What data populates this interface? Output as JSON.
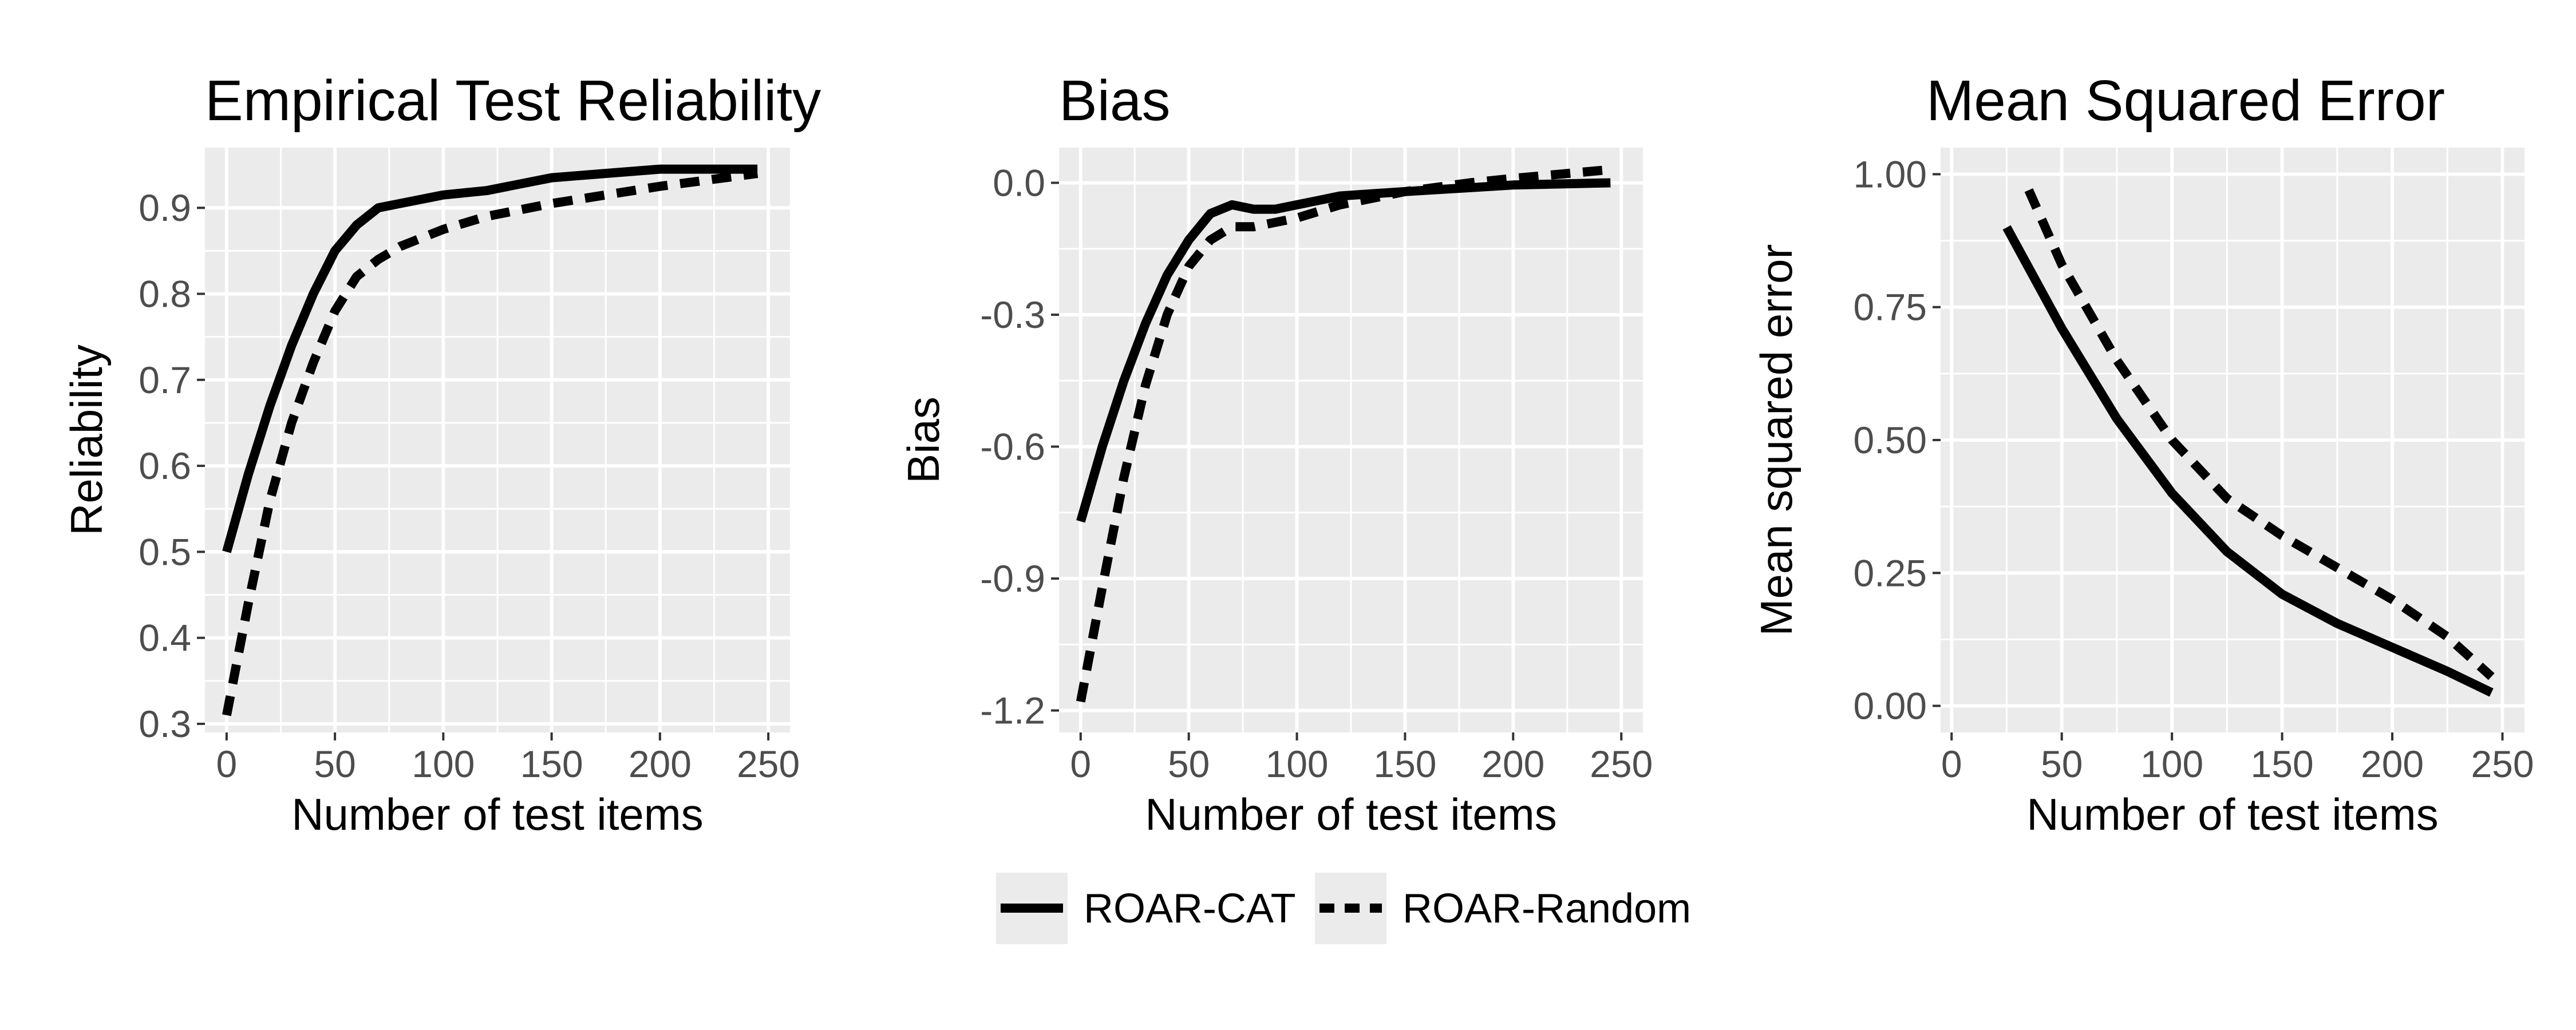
{
  "figure": {
    "background": "#ffffff",
    "panel_background": "#ebebeb",
    "grid_color": "#ffffff",
    "tick_label_color": "#4d4d4d",
    "line_color": "#000000"
  },
  "legend": {
    "placement": "bottom-center",
    "items": [
      {
        "label": "ROAR-CAT",
        "linetype": "solid"
      },
      {
        "label": "ROAR-Random",
        "linetype": "dashed"
      }
    ]
  },
  "chart_data": [
    {
      "type": "line",
      "title": "Empirical Test Reliability",
      "xlabel": "Number of test items",
      "ylabel": "Reliability",
      "xlim": [
        -10,
        260
      ],
      "ylim": [
        0.29,
        0.97
      ],
      "xticks": [
        0,
        50,
        100,
        150,
        200,
        250
      ],
      "xtick_labels": [
        "0",
        "50",
        "100",
        "150",
        "200",
        "250"
      ],
      "yticks": [
        0.3,
        0.4,
        0.5,
        0.6,
        0.7,
        0.8,
        0.9
      ],
      "ytick_labels": [
        "0.3",
        "0.4",
        "0.5",
        "0.6",
        "0.7",
        "0.8",
        "0.9"
      ],
      "grid": true,
      "series": [
        {
          "name": "ROAR-CAT",
          "linetype": "solid",
          "x": [
            0,
            10,
            20,
            30,
            40,
            50,
            60,
            70,
            80,
            90,
            100,
            120,
            150,
            200,
            245
          ],
          "y": [
            0.5,
            0.59,
            0.67,
            0.74,
            0.8,
            0.85,
            0.88,
            0.9,
            0.905,
            0.91,
            0.915,
            0.92,
            0.935,
            0.945,
            0.945
          ]
        },
        {
          "name": "ROAR-Random",
          "linetype": "dashed",
          "x": [
            0,
            10,
            20,
            30,
            40,
            50,
            60,
            70,
            80,
            100,
            120,
            150,
            200,
            245
          ],
          "y": [
            0.31,
            0.44,
            0.56,
            0.65,
            0.72,
            0.78,
            0.82,
            0.84,
            0.855,
            0.875,
            0.89,
            0.905,
            0.925,
            0.94
          ]
        }
      ]
    },
    {
      "type": "line",
      "title": "Bias",
      "xlabel": "Number of test items",
      "ylabel": "Bias",
      "xlim": [
        -10,
        260
      ],
      "ylim": [
        -1.25,
        0.08
      ],
      "xticks": [
        0,
        50,
        100,
        150,
        200,
        250
      ],
      "xtick_labels": [
        "0",
        "50",
        "100",
        "150",
        "200",
        "250"
      ],
      "yticks": [
        0.0,
        -0.3,
        -0.6,
        -0.9,
        -1.2
      ],
      "ytick_labels": [
        "0.0",
        "-0.3",
        "-0.6",
        "-0.9",
        "-1.2"
      ],
      "grid": true,
      "series": [
        {
          "name": "ROAR-CAT",
          "linetype": "solid",
          "x": [
            0,
            10,
            20,
            30,
            40,
            50,
            60,
            70,
            80,
            90,
            100,
            120,
            150,
            200,
            245
          ],
          "y": [
            -0.77,
            -0.6,
            -0.45,
            -0.32,
            -0.21,
            -0.13,
            -0.07,
            -0.05,
            -0.06,
            -0.06,
            -0.05,
            -0.03,
            -0.02,
            -0.005,
            0.0
          ]
        },
        {
          "name": "ROAR-Random",
          "linetype": "dashed",
          "x": [
            0,
            10,
            20,
            30,
            40,
            50,
            60,
            70,
            80,
            100,
            120,
            150,
            180,
            200,
            245
          ],
          "y": [
            -1.18,
            -0.92,
            -0.67,
            -0.46,
            -0.3,
            -0.19,
            -0.13,
            -0.1,
            -0.1,
            -0.08,
            -0.05,
            -0.02,
            0.0,
            0.01,
            0.03
          ]
        }
      ]
    },
    {
      "type": "line",
      "title": "Mean Squared Error",
      "xlabel": "Number of test items",
      "ylabel": "Mean squared error",
      "xlim": [
        -5,
        260
      ],
      "ylim": [
        -0.05,
        1.05
      ],
      "xticks": [
        0,
        50,
        100,
        150,
        200,
        250
      ],
      "xtick_labels": [
        "0",
        "50",
        "100",
        "150",
        "200",
        "250"
      ],
      "yticks": [
        0.0,
        0.25,
        0.5,
        0.75,
        1.0
      ],
      "ytick_labels": [
        "0.00",
        "0.25",
        "0.50",
        "0.75",
        "1.00"
      ],
      "grid": true,
      "series": [
        {
          "name": "ROAR-CAT",
          "linetype": "solid",
          "x": [
            25,
            50,
            75,
            100,
            125,
            150,
            175,
            200,
            225,
            245
          ],
          "y": [
            0.9,
            0.71,
            0.54,
            0.4,
            0.29,
            0.21,
            0.155,
            0.11,
            0.065,
            0.025
          ]
        },
        {
          "name": "ROAR-Random",
          "linetype": "dashed",
          "x": [
            35,
            50,
            75,
            100,
            125,
            150,
            175,
            200,
            225,
            245
          ],
          "y": [
            0.97,
            0.83,
            0.65,
            0.5,
            0.39,
            0.32,
            0.26,
            0.2,
            0.13,
            0.055
          ]
        }
      ]
    }
  ]
}
